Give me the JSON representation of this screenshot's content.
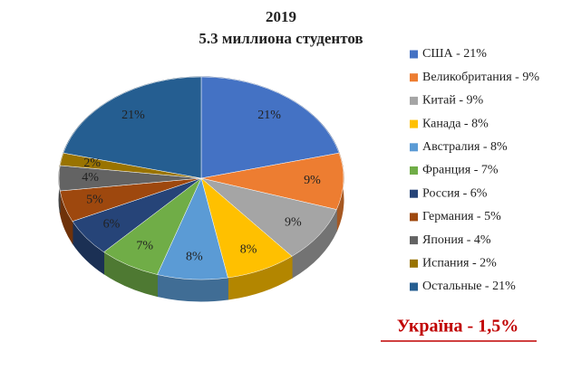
{
  "chart_data": {
    "type": "pie3d",
    "title": "2019",
    "subtitle": "5.3 миллиона студентов",
    "categories": [
      "США - 21%",
      "Великобритания - 9%",
      "Китай - 9%",
      "Канада - 8%",
      "Австралия - 8%",
      "Франция - 7%",
      "Россия - 6%",
      "Германия - 5%",
      "Япония - 4%",
      "Испания - 2%",
      "Остальные - 21%"
    ],
    "values": [
      21,
      9,
      9,
      8,
      8,
      7,
      6,
      5,
      4,
      2,
      21
    ],
    "value_labels": [
      "21%",
      "9%",
      "9%",
      "8%",
      "8%",
      "7%",
      "6%",
      "5%",
      "4%",
      "2%",
      "21%"
    ],
    "colors": [
      "#4472c4",
      "#ed7d31",
      "#a5a5a5",
      "#ffc000",
      "#5b9bd5",
      "#70ad47",
      "#264478",
      "#9e480e",
      "#636363",
      "#997300",
      "#255e91"
    ],
    "annotation": "Україна - 1,5%"
  }
}
